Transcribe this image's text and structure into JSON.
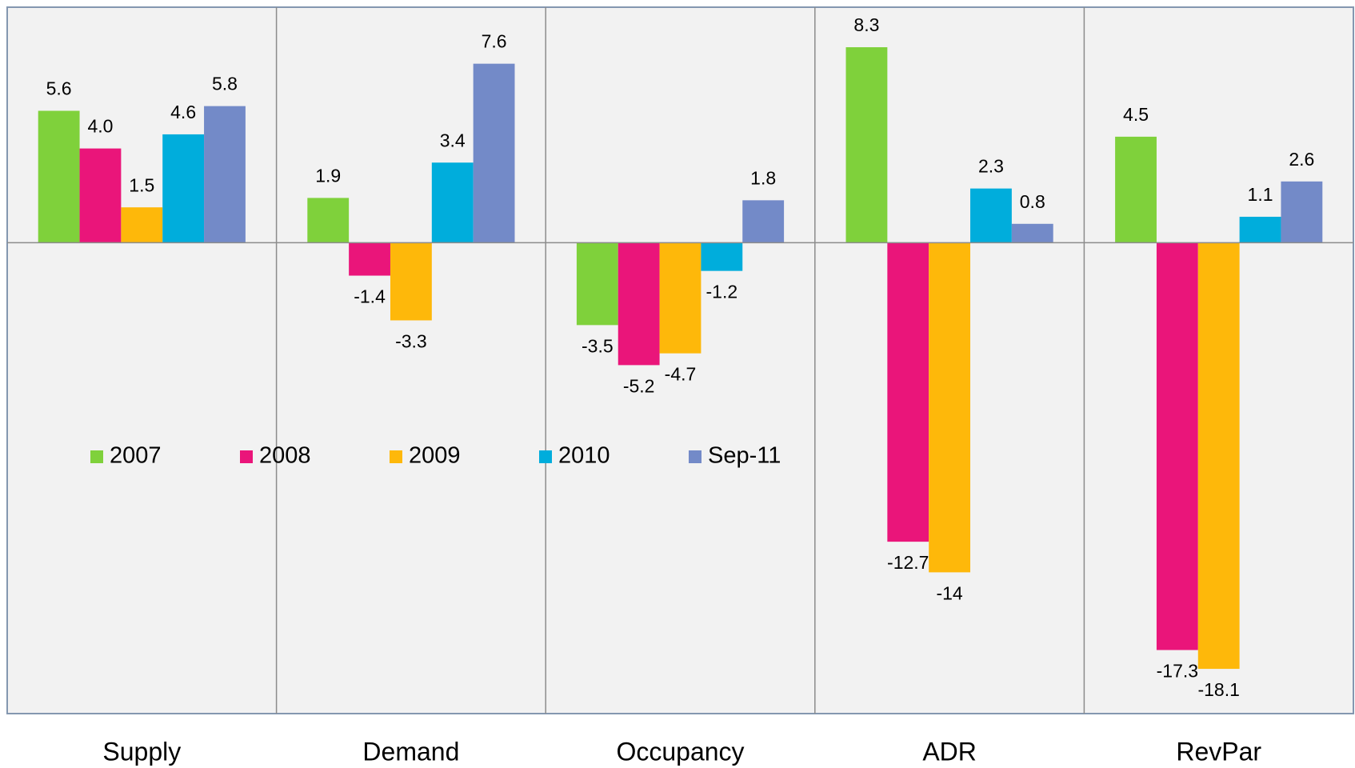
{
  "chart_data": {
    "type": "bar",
    "categories": [
      "Supply",
      "Demand",
      "Occupancy",
      "ADR",
      "RevPar"
    ],
    "series": [
      {
        "name": "2007",
        "color": "#7fd13b",
        "values": [
          5.6,
          1.9,
          -3.5,
          8.3,
          4.5
        ],
        "value_labels": [
          "5.6",
          "1.9",
          "-3.5",
          "8.3",
          "4.5"
        ]
      },
      {
        "name": "2008",
        "color": "#ea157a",
        "values": [
          4.0,
          -1.4,
          -5.2,
          -12.7,
          -17.3
        ],
        "value_labels": [
          "4.0",
          "-1.4",
          "-5.2",
          "-12.7",
          "-17.3"
        ]
      },
      {
        "name": "2009",
        "color": "#feb80a",
        "values": [
          1.5,
          -3.3,
          -4.7,
          -14,
          -18.1
        ],
        "value_labels": [
          "1.5",
          "-3.3",
          "-4.7",
          "-14",
          "-18.1"
        ]
      },
      {
        "name": "2010",
        "color": "#00addc",
        "values": [
          4.6,
          3.4,
          -1.2,
          2.3,
          1.1
        ],
        "value_labels": [
          "4.6",
          "3.4",
          "-1.2",
          "2.3",
          "1.1"
        ]
      },
      {
        "name": "Sep-11",
        "color": "#738ac8",
        "values": [
          5.8,
          7.6,
          1.8,
          0.8,
          2.6
        ],
        "value_labels": [
          "5.8",
          "7.6",
          "1.8",
          "0.8",
          "2.6"
        ]
      }
    ],
    "ylim": [
      -20,
      10
    ]
  }
}
